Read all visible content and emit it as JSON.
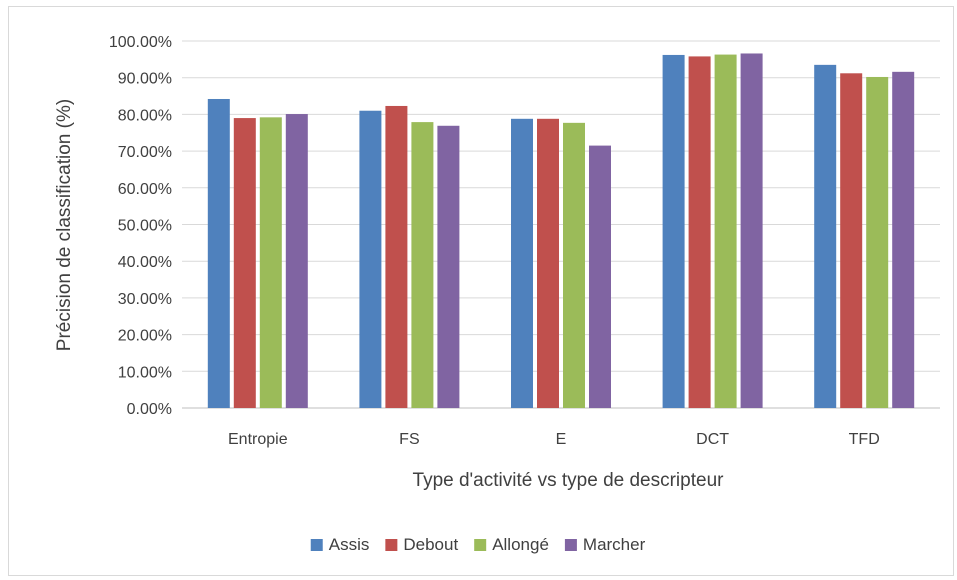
{
  "chart_data": {
    "type": "bar",
    "title": "",
    "xlabel": "Type d'activité vs type de descripteur",
    "ylabel": "Précision de classification (%)",
    "categories": [
      "Entropie",
      "FS",
      "E",
      "DCT",
      "TFD"
    ],
    "ylim": [
      0,
      100
    ],
    "yticks": [
      "0.00%",
      "10.00%",
      "20.00%",
      "30.00%",
      "40.00%",
      "50.00%",
      "60.00%",
      "70.00%",
      "80.00%",
      "90.00%",
      "100.00%"
    ],
    "grid": true,
    "legend_position": "bottom",
    "series": [
      {
        "name": "Assis",
        "color": "#4f81bd",
        "values": [
          84.2,
          81.0,
          78.8,
          96.2,
          93.5
        ]
      },
      {
        "name": "Debout",
        "color": "#c0504d",
        "values": [
          79.0,
          82.3,
          78.8,
          95.8,
          91.2
        ]
      },
      {
        "name": "Allongé",
        "color": "#9bbb59",
        "values": [
          79.2,
          77.9,
          77.7,
          96.3,
          90.2
        ]
      },
      {
        "name": "Marcher",
        "color": "#8064a2",
        "values": [
          80.1,
          76.9,
          71.5,
          96.6,
          91.6
        ]
      }
    ]
  }
}
